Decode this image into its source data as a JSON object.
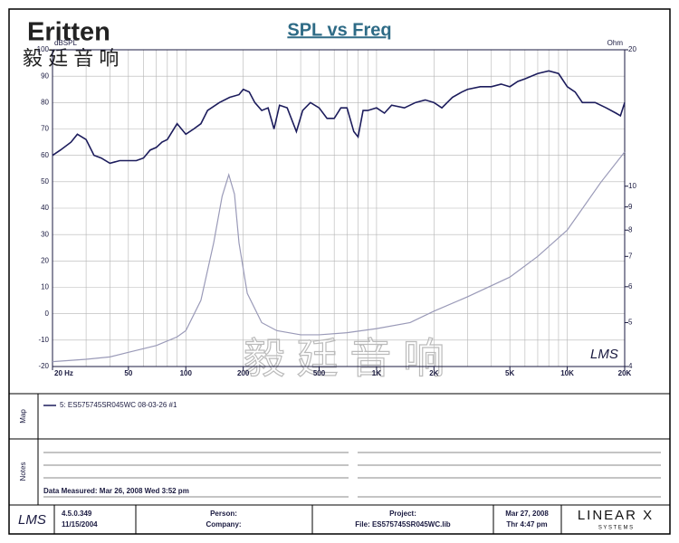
{
  "header": {
    "logo": "Eritten",
    "logo_cn": "毅 廷 音 响"
  },
  "chart_data": {
    "type": "line",
    "title": "SPL vs Freq",
    "y_label": "dBSPL",
    "y2_label": "Ohm",
    "watermark": "毅 廷 音 响",
    "mark": "LMS",
    "xlim": [
      20,
      20000
    ],
    "xscale": "log",
    "xticks": [
      {
        "value": 20,
        "label": "20 Hz"
      },
      50,
      100,
      200,
      500,
      {
        "value": 1000,
        "label": "1K"
      },
      {
        "value": 2000,
        "label": "2K"
      },
      {
        "value": 5000,
        "label": "5K"
      },
      {
        "value": 10000,
        "label": "10K"
      },
      {
        "value": 20000,
        "label": "20K"
      }
    ],
    "xgrid": [
      20,
      30,
      40,
      50,
      60,
      70,
      80,
      90,
      100,
      200,
      300,
      400,
      500,
      600,
      700,
      800,
      900,
      1000,
      2000,
      3000,
      4000,
      5000,
      6000,
      7000,
      8000,
      9000,
      10000,
      20000
    ],
    "ylim": [
      -20,
      100
    ],
    "yticks": [
      -20,
      -10,
      0,
      10,
      20,
      30,
      40,
      50,
      60,
      70,
      80,
      90,
      100
    ],
    "y2lim": [
      4,
      20
    ],
    "y2scale": "log",
    "y2ticks": [
      4,
      5,
      6,
      7,
      8,
      9,
      10,
      20
    ],
    "grid": true,
    "series": [
      {
        "name": "SPL",
        "color": "#1c1c5c",
        "x": [
          20,
          22,
          25,
          27,
          30,
          33,
          36,
          40,
          45,
          50,
          55,
          60,
          65,
          70,
          75,
          80,
          90,
          100,
          110,
          120,
          130,
          150,
          170,
          190,
          200,
          215,
          230,
          250,
          270,
          290,
          310,
          340,
          380,
          410,
          450,
          500,
          550,
          600,
          650,
          700,
          760,
          800,
          850,
          900,
          1000,
          1100,
          1200,
          1400,
          1600,
          1800,
          2000,
          2200,
          2500,
          2800,
          3000,
          3500,
          4000,
          4500,
          5000,
          5500,
          6000,
          7000,
          8000,
          9000,
          10000,
          11000,
          12000,
          14000,
          16000,
          18000,
          19000,
          20000
        ],
        "values": [
          60,
          62,
          65,
          68,
          66,
          60,
          59,
          57,
          58,
          58,
          58,
          59,
          62,
          63,
          65,
          66,
          72,
          68,
          70,
          72,
          77,
          80,
          82,
          83,
          85,
          84,
          80,
          77,
          78,
          70,
          79,
          78,
          69,
          77,
          80,
          78,
          74,
          74,
          78,
          78,
          69,
          67,
          77,
          77,
          78,
          76,
          79,
          78,
          80,
          81,
          80,
          78,
          82,
          84,
          85,
          86,
          86,
          87,
          86,
          88,
          89,
          91,
          92,
          91,
          86,
          84,
          80,
          80,
          78,
          76,
          75,
          80
        ]
      },
      {
        "name": "Impedance",
        "color": "#9a9ab8",
        "axis": "y2",
        "x": [
          20,
          30,
          40,
          50,
          70,
          90,
          100,
          120,
          140,
          155,
          168,
          180,
          190,
          210,
          250,
          300,
          400,
          500,
          700,
          1000,
          1500,
          2000,
          3000,
          5000,
          7000,
          10000,
          15000,
          20000
        ],
        "values": [
          4.1,
          4.15,
          4.2,
          4.3,
          4.45,
          4.65,
          4.8,
          5.6,
          7.5,
          9.5,
          10.6,
          9.6,
          7.5,
          5.8,
          5.0,
          4.8,
          4.7,
          4.7,
          4.75,
          4.85,
          5.0,
          5.3,
          5.7,
          6.3,
          7.0,
          8.0,
          10.2,
          11.9
        ]
      }
    ]
  },
  "map": {
    "label": "Map",
    "entry": "5: ES575745SR045WC  08-03-26  #1"
  },
  "notes": {
    "label": "Notes",
    "text": "Data Measured: Mar 26, 2008  Wed  3:52 pm"
  },
  "footer": {
    "logo": "LMS",
    "version": "4.5.0.349",
    "build_date": "11/15/2004",
    "person": "Person:",
    "company": "Company:",
    "project": "Project:",
    "file": "File: ES575745SR045WC.lib",
    "date": "Mar 27, 2008",
    "time": "Thr  4:47 pm",
    "brand": "LINEAR X",
    "brand_sub": "S Y S T E M S"
  }
}
